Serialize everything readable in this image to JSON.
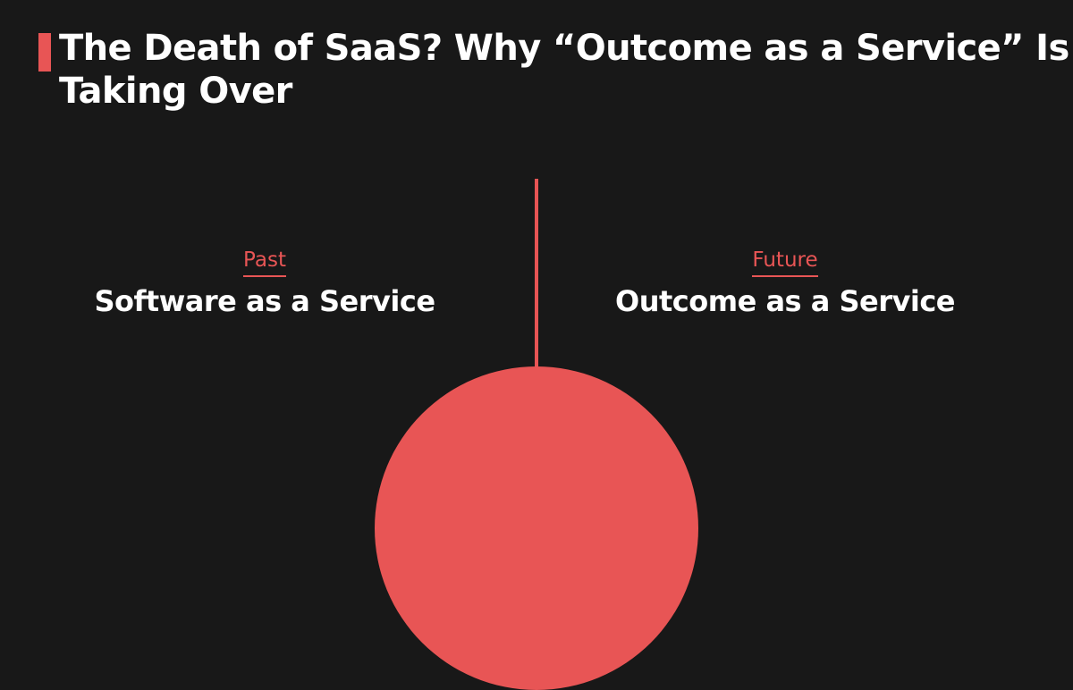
{
  "header": {
    "title": "The Death of SaaS? Why “Outcome as a Service” Is Taking Over"
  },
  "comparison": {
    "left": {
      "eyebrow": "Past",
      "heading": "Software as a Service"
    },
    "right": {
      "eyebrow": "Future",
      "heading": "Outcome as a Service"
    }
  },
  "colors": {
    "background": "#181818",
    "accent": "#E85555",
    "text": "#FFFFFF"
  }
}
